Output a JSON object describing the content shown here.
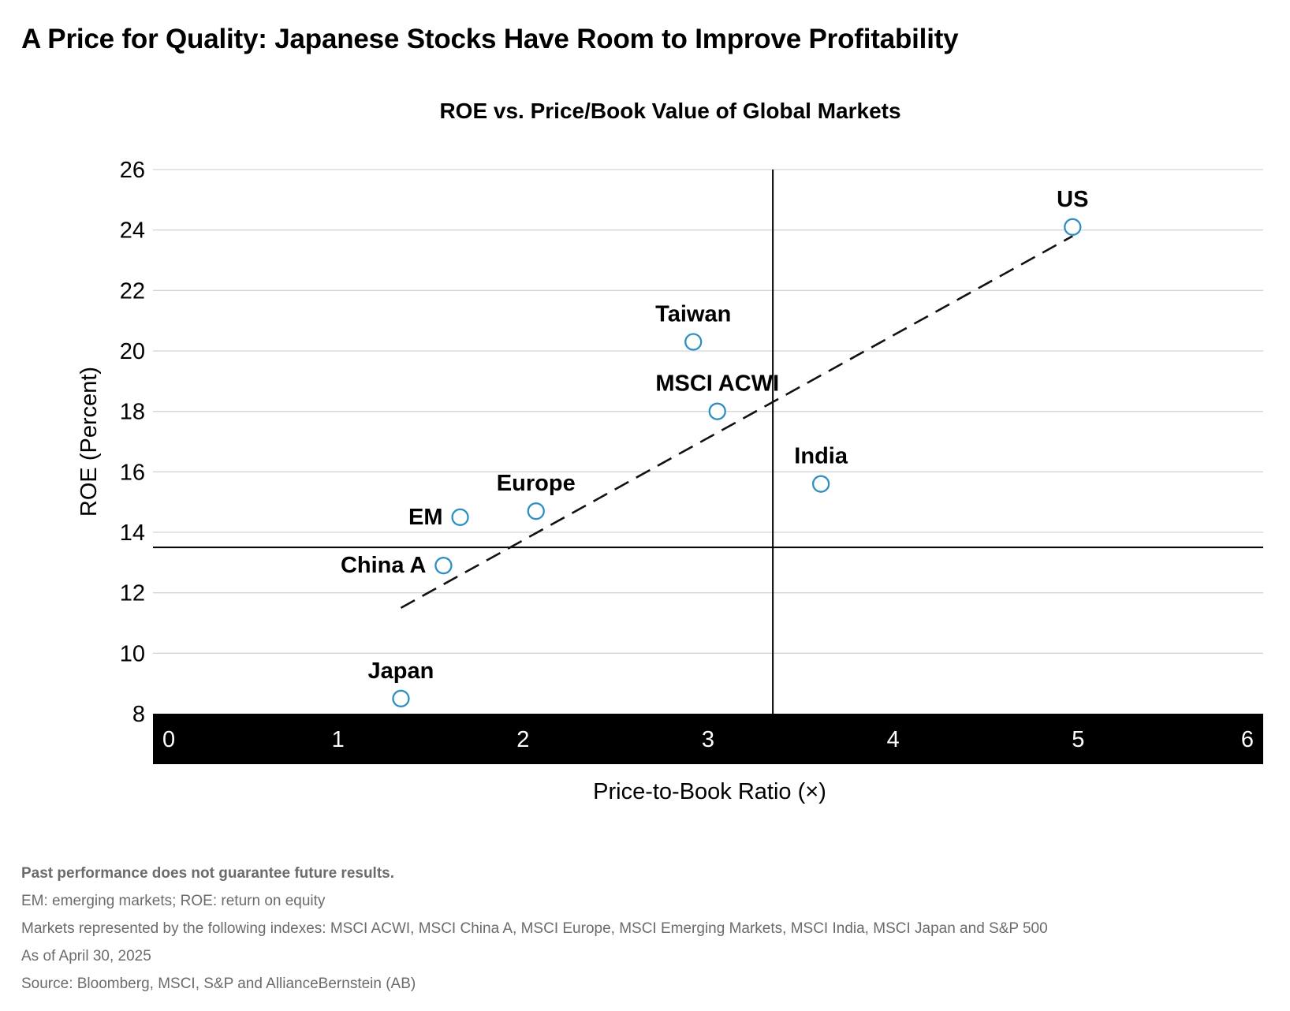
{
  "title": "A Price for Quality: Japanese Stocks Have Room to Improve Profitability",
  "chart_data": {
    "type": "scatter",
    "title": "ROE vs. Price/Book Value of Global Markets",
    "xlabel": "Price-to-Book Ratio (×)",
    "ylabel": "ROE (Percent)",
    "xlim": [
      0,
      6
    ],
    "ylim": [
      8,
      26
    ],
    "xticks": [
      0,
      1,
      2,
      3,
      4,
      5,
      6
    ],
    "yticks": [
      8,
      10,
      12,
      14,
      16,
      18,
      20,
      22,
      24,
      26
    ],
    "grid": true,
    "points": [
      {
        "label": "US",
        "x": 4.97,
        "y": 24.1
      },
      {
        "label": "Taiwan",
        "x": 2.92,
        "y": 20.3
      },
      {
        "label": "MSCI ACWI",
        "x": 3.05,
        "y": 18.0
      },
      {
        "label": "India",
        "x": 3.61,
        "y": 15.6
      },
      {
        "label": "Europe",
        "x": 2.07,
        "y": 14.7
      },
      {
        "label": "EM",
        "x": 1.66,
        "y": 14.5
      },
      {
        "label": "China A",
        "x": 1.57,
        "y": 12.9
      },
      {
        "label": "Japan",
        "x": 1.34,
        "y": 8.5
      }
    ],
    "reference_lines": {
      "x": 3.35,
      "y": 13.5
    },
    "trendline": {
      "x": [
        1.34,
        4.97
      ],
      "y": [
        11.5,
        23.8
      ]
    },
    "colors": {
      "marker": "#2f8fc2",
      "axis_band": "#000000",
      "grid": "#d4d4d4"
    }
  },
  "notes": {
    "disclaimer": "Past performance does not guarantee future results.",
    "abbreviations": "EM: emerging markets; ROE: return on equity",
    "indexes": "Markets represented by the following indexes: MSCI ACWI, MSCI China A, MSCI Europe, MSCI Emerging Markets, MSCI India, MSCI Japan and S&P 500",
    "as_of": "As of April 30, 2025",
    "source": "Source: Bloomberg, MSCI, S&P and AllianceBernstein (AB)"
  }
}
